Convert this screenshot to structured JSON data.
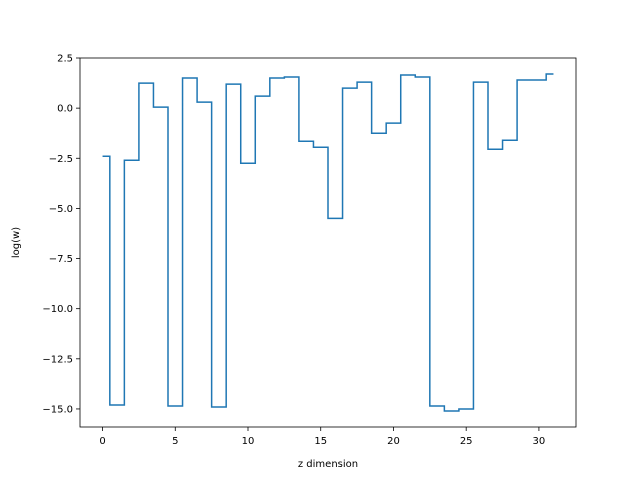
{
  "chart_data": {
    "type": "line",
    "drawstyle": "steps-mid",
    "title": "",
    "xlabel": "z dimension",
    "ylabel": "log(w)",
    "xlim": [
      -1.55,
      32.55
    ],
    "ylim": [
      -15.9,
      2.5
    ],
    "x_ticks": [
      0,
      5,
      10,
      15,
      20,
      25,
      30
    ],
    "x_tick_labels": [
      "0",
      "5",
      "10",
      "15",
      "20",
      "25",
      "30"
    ],
    "y_ticks": [
      2.5,
      0.0,
      -2.5,
      -5.0,
      -7.5,
      -10.0,
      -12.5,
      -15.0
    ],
    "y_tick_labels": [
      "2.5",
      "0.0",
      "−2.5",
      "−5.0",
      "−7.5",
      "−10.0",
      "−12.5",
      "−15.0"
    ],
    "grid": false,
    "color": "#1f77b4",
    "x": [
      0,
      1,
      2,
      3,
      4,
      5,
      6,
      7,
      8,
      9,
      10,
      11,
      12,
      13,
      14,
      15,
      16,
      17,
      18,
      19,
      20,
      21,
      22,
      23,
      24,
      25,
      26,
      27,
      28,
      29,
      30,
      31
    ],
    "y": [
      -2.4,
      -14.8,
      -2.6,
      1.25,
      0.05,
      -14.85,
      1.5,
      0.3,
      -14.9,
      1.2,
      -2.75,
      0.6,
      1.5,
      1.55,
      -1.65,
      -1.95,
      -5.5,
      1.0,
      1.3,
      -1.25,
      -0.75,
      1.65,
      1.55,
      -14.85,
      -15.1,
      -15.0,
      1.3,
      -2.05,
      -1.6,
      1.4,
      1.4,
      1.7
    ]
  }
}
